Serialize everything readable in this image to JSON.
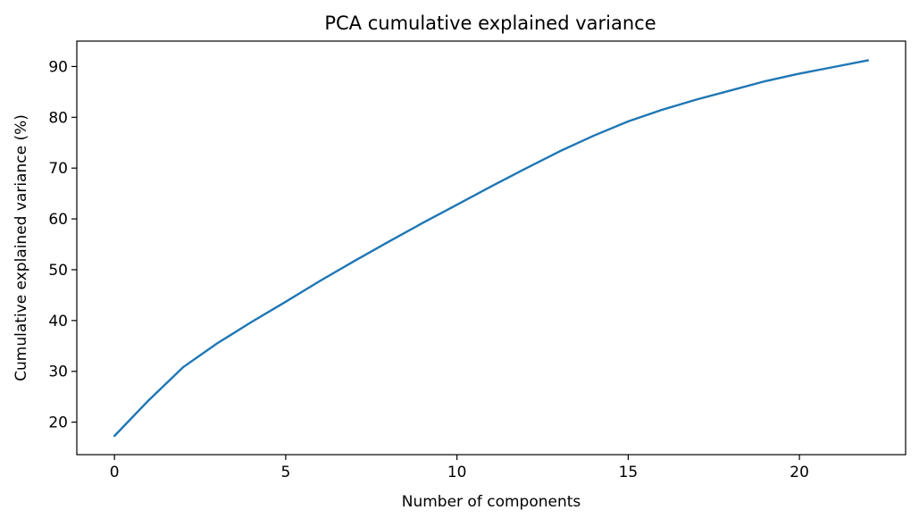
{
  "chart_data": {
    "type": "line",
    "title": "PCA cumulative explained variance",
    "xlabel": "Number of components",
    "ylabel": "Cumulative explained variance (%)",
    "xlim": [
      -1.1,
      23.1
    ],
    "ylim": [
      13.6,
      95.0
    ],
    "xticks": [
      0,
      5,
      10,
      15,
      20
    ],
    "yticks": [
      20,
      30,
      40,
      50,
      60,
      70,
      80,
      90
    ],
    "grid": false,
    "legend": "none",
    "series": [
      {
        "color": "#1f77b4",
        "x": [
          0,
          1,
          2,
          3,
          4,
          5,
          6,
          7,
          8,
          9,
          10,
          11,
          12,
          13,
          14,
          15,
          16,
          17,
          18,
          19,
          20,
          21,
          22
        ],
        "y": [
          17.3,
          24.3,
          30.8,
          35.5,
          39.7,
          43.7,
          47.8,
          51.7,
          55.5,
          59.2,
          62.8,
          66.4,
          69.9,
          73.3,
          76.4,
          79.2,
          81.5,
          83.5,
          85.3,
          87.1,
          88.6,
          89.9,
          91.2
        ]
      }
    ]
  }
}
